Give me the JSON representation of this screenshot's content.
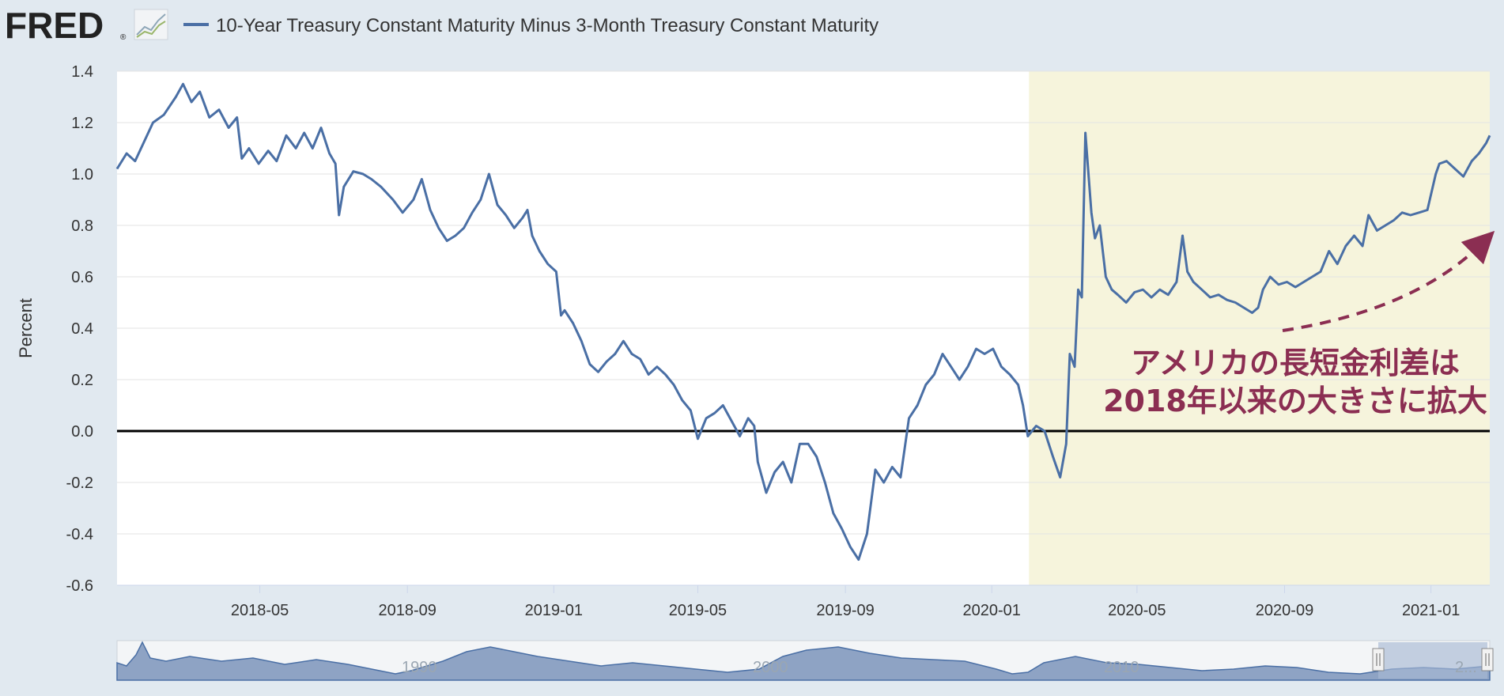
{
  "header": {
    "logo_text": "FRED",
    "logo_reg": "®",
    "logo_icon": "chart-line-icon",
    "series_title": "10-Year Treasury Constant Maturity Minus 3-Month Treasury Constant Maturity"
  },
  "annotation": {
    "line1": "アメリカの長短金利差は",
    "line2": "2018年以来の大きさに拡大",
    "color": "#8b2e52"
  },
  "navigator": {
    "labels": [
      "1990",
      "2000",
      "2010",
      "2..."
    ]
  },
  "colors": {
    "series": "#4a6fa5",
    "recession_shade": "#f6f4dc",
    "page_background": "#e1e9f0"
  },
  "chart_data": {
    "type": "line",
    "title": "10-Year Treasury Constant Maturity Minus 3-Month Treasury Constant Maturity",
    "xlabel": "",
    "ylabel": "Percent",
    "ylim": [
      -0.6,
      1.4
    ],
    "y_ticks": [
      "1.4",
      "1.2",
      "1.0",
      "0.8",
      "0.6",
      "0.4",
      "0.2",
      "0.0",
      "-0.2",
      "-0.4",
      "-0.6"
    ],
    "x_ticks": [
      "2018-05",
      "2018-09",
      "2019-01",
      "2019-05",
      "2019-09",
      "2020-01",
      "2020-05",
      "2020-09",
      "2021-01"
    ],
    "x_range": [
      "2018-01-02",
      "2021-02-19"
    ],
    "grid": true,
    "zero_line": 0.0,
    "shaded_region": [
      "2020-02-01",
      "2021-02-19"
    ],
    "legend": "top-left",
    "series": [
      {
        "name": "10-Year Treasury Constant Maturity Minus 3-Month Treasury Constant Maturity",
        "points": [
          [
            "2018-01-02",
            1.02
          ],
          [
            "2018-01-10",
            1.08
          ],
          [
            "2018-01-17",
            1.05
          ],
          [
            "2018-01-24",
            1.12
          ],
          [
            "2018-02-01",
            1.2
          ],
          [
            "2018-02-10",
            1.23
          ],
          [
            "2018-02-20",
            1.3
          ],
          [
            "2018-02-26",
            1.35
          ],
          [
            "2018-03-05",
            1.28
          ],
          [
            "2018-03-12",
            1.32
          ],
          [
            "2018-03-20",
            1.22
          ],
          [
            "2018-03-28",
            1.25
          ],
          [
            "2018-04-05",
            1.18
          ],
          [
            "2018-04-12",
            1.22
          ],
          [
            "2018-04-16",
            1.06
          ],
          [
            "2018-04-22",
            1.1
          ],
          [
            "2018-04-30",
            1.04
          ],
          [
            "2018-05-08",
            1.09
          ],
          [
            "2018-05-15",
            1.05
          ],
          [
            "2018-05-23",
            1.15
          ],
          [
            "2018-05-31",
            1.1
          ],
          [
            "2018-06-07",
            1.16
          ],
          [
            "2018-06-14",
            1.1
          ],
          [
            "2018-06-21",
            1.18
          ],
          [
            "2018-06-28",
            1.08
          ],
          [
            "2018-07-03",
            1.04
          ],
          [
            "2018-07-06",
            0.84
          ],
          [
            "2018-07-10",
            0.95
          ],
          [
            "2018-07-18",
            1.01
          ],
          [
            "2018-07-26",
            1.0
          ],
          [
            "2018-08-02",
            0.98
          ],
          [
            "2018-08-10",
            0.95
          ],
          [
            "2018-08-20",
            0.9
          ],
          [
            "2018-08-28",
            0.85
          ],
          [
            "2018-09-06",
            0.9
          ],
          [
            "2018-09-13",
            0.98
          ],
          [
            "2018-09-20",
            0.86
          ],
          [
            "2018-09-27",
            0.79
          ],
          [
            "2018-10-04",
            0.74
          ],
          [
            "2018-10-11",
            0.76
          ],
          [
            "2018-10-18",
            0.79
          ],
          [
            "2018-10-25",
            0.85
          ],
          [
            "2018-11-01",
            0.9
          ],
          [
            "2018-11-08",
            1.0
          ],
          [
            "2018-11-15",
            0.88
          ],
          [
            "2018-11-22",
            0.84
          ],
          [
            "2018-11-29",
            0.79
          ],
          [
            "2018-12-06",
            0.83
          ],
          [
            "2018-12-10",
            0.86
          ],
          [
            "2018-12-14",
            0.76
          ],
          [
            "2018-12-20",
            0.7
          ],
          [
            "2018-12-27",
            0.65
          ],
          [
            "2019-01-03",
            0.62
          ],
          [
            "2019-01-07",
            0.45
          ],
          [
            "2019-01-10",
            0.47
          ],
          [
            "2019-01-17",
            0.42
          ],
          [
            "2019-01-24",
            0.35
          ],
          [
            "2019-01-31",
            0.26
          ],
          [
            "2019-02-07",
            0.23
          ],
          [
            "2019-02-14",
            0.27
          ],
          [
            "2019-02-21",
            0.3
          ],
          [
            "2019-02-28",
            0.35
          ],
          [
            "2019-03-07",
            0.3
          ],
          [
            "2019-03-14",
            0.28
          ],
          [
            "2019-03-21",
            0.22
          ],
          [
            "2019-03-28",
            0.25
          ],
          [
            "2019-04-04",
            0.22
          ],
          [
            "2019-04-11",
            0.18
          ],
          [
            "2019-04-18",
            0.12
          ],
          [
            "2019-04-25",
            0.08
          ],
          [
            "2019-05-01",
            -0.03
          ],
          [
            "2019-05-08",
            0.05
          ],
          [
            "2019-05-15",
            0.07
          ],
          [
            "2019-05-22",
            0.1
          ],
          [
            "2019-05-29",
            0.04
          ],
          [
            "2019-06-05",
            -0.02
          ],
          [
            "2019-06-12",
            0.05
          ],
          [
            "2019-06-17",
            0.02
          ],
          [
            "2019-06-20",
            -0.12
          ],
          [
            "2019-06-27",
            -0.24
          ],
          [
            "2019-07-04",
            -0.16
          ],
          [
            "2019-07-11",
            -0.12
          ],
          [
            "2019-07-18",
            -0.2
          ],
          [
            "2019-07-25",
            -0.05
          ],
          [
            "2019-08-01",
            -0.05
          ],
          [
            "2019-08-08",
            -0.1
          ],
          [
            "2019-08-15",
            -0.2
          ],
          [
            "2019-08-22",
            -0.32
          ],
          [
            "2019-08-29",
            -0.38
          ],
          [
            "2019-09-05",
            -0.45
          ],
          [
            "2019-09-12",
            -0.5
          ],
          [
            "2019-09-19",
            -0.4
          ],
          [
            "2019-09-26",
            -0.15
          ],
          [
            "2019-10-03",
            -0.2
          ],
          [
            "2019-10-10",
            -0.14
          ],
          [
            "2019-10-17",
            -0.18
          ],
          [
            "2019-10-24",
            0.05
          ],
          [
            "2019-10-31",
            0.1
          ],
          [
            "2019-11-07",
            0.18
          ],
          [
            "2019-11-14",
            0.22
          ],
          [
            "2019-11-21",
            0.3
          ],
          [
            "2019-11-28",
            0.25
          ],
          [
            "2019-12-05",
            0.2
          ],
          [
            "2019-12-12",
            0.25
          ],
          [
            "2019-12-19",
            0.32
          ],
          [
            "2019-12-26",
            0.3
          ],
          [
            "2020-01-02",
            0.32
          ],
          [
            "2020-01-09",
            0.25
          ],
          [
            "2020-01-16",
            0.22
          ],
          [
            "2020-01-23",
            0.18
          ],
          [
            "2020-01-27",
            0.1
          ],
          [
            "2020-01-31",
            -0.02
          ],
          [
            "2020-02-07",
            0.02
          ],
          [
            "2020-02-14",
            0.0
          ],
          [
            "2020-02-21",
            -0.1
          ],
          [
            "2020-02-27",
            -0.18
          ],
          [
            "2020-03-03",
            -0.05
          ],
          [
            "2020-03-06",
            0.3
          ],
          [
            "2020-03-10",
            0.25
          ],
          [
            "2020-03-13",
            0.55
          ],
          [
            "2020-03-16",
            0.52
          ],
          [
            "2020-03-19",
            1.16
          ],
          [
            "2020-03-24",
            0.85
          ],
          [
            "2020-03-27",
            0.75
          ],
          [
            "2020-03-31",
            0.8
          ],
          [
            "2020-04-05",
            0.6
          ],
          [
            "2020-04-10",
            0.55
          ],
          [
            "2020-04-15",
            0.53
          ],
          [
            "2020-04-22",
            0.5
          ],
          [
            "2020-04-29",
            0.54
          ],
          [
            "2020-05-06",
            0.55
          ],
          [
            "2020-05-13",
            0.52
          ],
          [
            "2020-05-20",
            0.55
          ],
          [
            "2020-05-27",
            0.53
          ],
          [
            "2020-06-03",
            0.58
          ],
          [
            "2020-06-08",
            0.76
          ],
          [
            "2020-06-12",
            0.62
          ],
          [
            "2020-06-17",
            0.58
          ],
          [
            "2020-06-24",
            0.55
          ],
          [
            "2020-07-01",
            0.52
          ],
          [
            "2020-07-08",
            0.53
          ],
          [
            "2020-07-15",
            0.51
          ],
          [
            "2020-07-22",
            0.5
          ],
          [
            "2020-07-29",
            0.48
          ],
          [
            "2020-08-05",
            0.46
          ],
          [
            "2020-08-10",
            0.48
          ],
          [
            "2020-08-14",
            0.55
          ],
          [
            "2020-08-20",
            0.6
          ],
          [
            "2020-08-27",
            0.57
          ],
          [
            "2020-09-03",
            0.58
          ],
          [
            "2020-09-10",
            0.56
          ],
          [
            "2020-09-17",
            0.58
          ],
          [
            "2020-09-24",
            0.6
          ],
          [
            "2020-10-01",
            0.62
          ],
          [
            "2020-10-08",
            0.7
          ],
          [
            "2020-10-15",
            0.65
          ],
          [
            "2020-10-22",
            0.72
          ],
          [
            "2020-10-29",
            0.76
          ],
          [
            "2020-11-05",
            0.72
          ],
          [
            "2020-11-10",
            0.84
          ],
          [
            "2020-11-17",
            0.78
          ],
          [
            "2020-11-24",
            0.8
          ],
          [
            "2020-12-01",
            0.82
          ],
          [
            "2020-12-08",
            0.85
          ],
          [
            "2020-12-15",
            0.84
          ],
          [
            "2020-12-22",
            0.85
          ],
          [
            "2020-12-29",
            0.86
          ],
          [
            "2021-01-05",
            1.0
          ],
          [
            "2021-01-08",
            1.04
          ],
          [
            "2021-01-14",
            1.05
          ],
          [
            "2021-01-21",
            1.02
          ],
          [
            "2021-01-28",
            0.99
          ],
          [
            "2021-02-04",
            1.05
          ],
          [
            "2021-02-10",
            1.08
          ],
          [
            "2021-02-16",
            1.12
          ],
          [
            "2021-02-19",
            1.15
          ]
        ]
      }
    ]
  }
}
